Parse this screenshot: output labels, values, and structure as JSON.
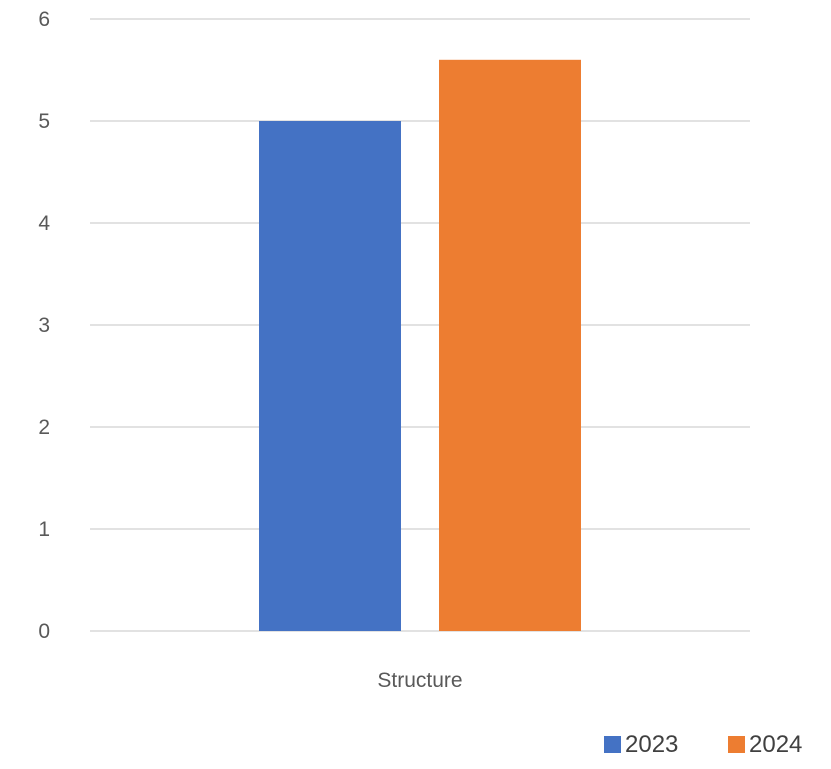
{
  "chart_data": {
    "type": "bar",
    "categories": [
      "Structure"
    ],
    "series": [
      {
        "name": "2023",
        "values": [
          5.0
        ]
      },
      {
        "name": "2024",
        "values": [
          5.6
        ]
      }
    ],
    "ylim": [
      0,
      6
    ],
    "yticks": [
      "0",
      "1",
      "2",
      "3",
      "4",
      "5",
      "6"
    ],
    "grid": true,
    "legend_position": "bottom-right",
    "colors": {
      "2023": "#4472c4",
      "2024": "#ed7d31",
      "gridline": "#d9d9d9"
    }
  }
}
